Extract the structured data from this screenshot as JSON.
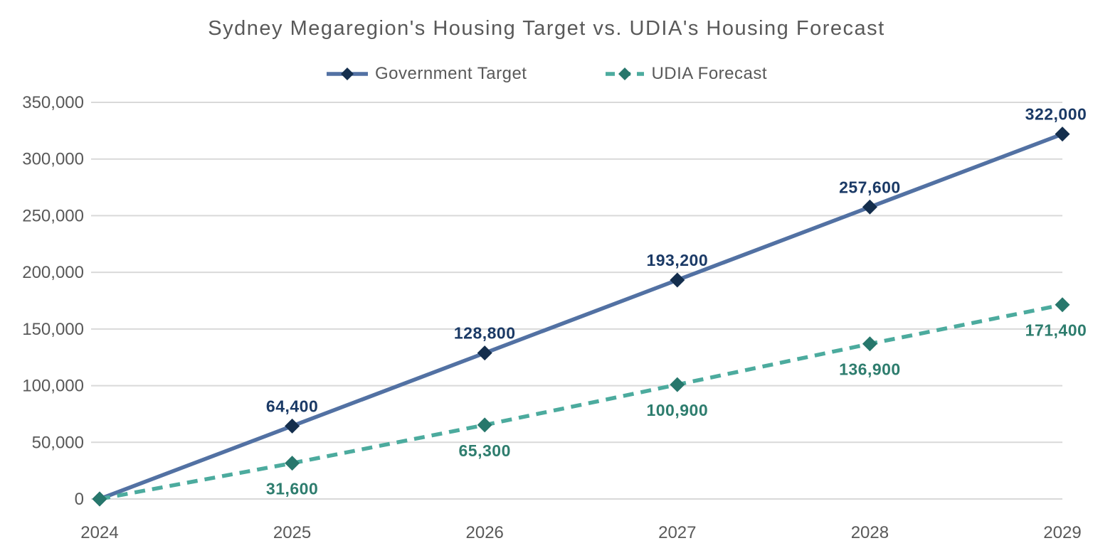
{
  "title": "Sydney Megaregion's Housing Target vs. UDIA's Housing Forecast",
  "legend": {
    "items": [
      {
        "label": "Government Target"
      },
      {
        "label": "UDIA Forecast"
      }
    ]
  },
  "colors": {
    "background": "#ffffff",
    "title_text": "#595959",
    "axis_text": "#595959",
    "gridline": "#d9d9d9",
    "government_line": "#5271a3",
    "government_marker": "#142e4d",
    "government_label": "#1b3a66",
    "udia_line": "#4cab9e",
    "udia_marker": "#27776c",
    "udia_label": "#2e7d6e"
  },
  "chart_data": {
    "type": "line",
    "title": "Sydney Megaregion's Housing Target vs. UDIA's Housing Forecast",
    "x": [
      2024,
      2025,
      2026,
      2027,
      2028,
      2029
    ],
    "xtick_labels": [
      "2024",
      "2025",
      "2026",
      "2027",
      "2028",
      "2029"
    ],
    "series": [
      {
        "name": "Government Target",
        "values": [
          0,
          64400,
          128800,
          193200,
          257600,
          322000
        ],
        "data_labels": [
          "",
          "64,400",
          "128,800",
          "193,200",
          "257,600",
          "322,000"
        ],
        "style": "solid",
        "color": "#5271a3",
        "marker": "diamond",
        "marker_color": "#142e4d",
        "label_color": "#1b3a66",
        "label_position": "above"
      },
      {
        "name": "UDIA Forecast",
        "values": [
          0,
          31600,
          65300,
          100900,
          136900,
          171400
        ],
        "data_labels": [
          "",
          "31,600",
          "65,300",
          "100,900",
          "136,900",
          "171,400"
        ],
        "style": "dashed",
        "color": "#4cab9e",
        "marker": "diamond",
        "marker_color": "#27776c",
        "label_color": "#2e7d6e",
        "label_position": "below"
      }
    ],
    "xlabel": "",
    "ylabel": "",
    "ylim": [
      0,
      350000
    ],
    "yticks": [
      0,
      50000,
      100000,
      150000,
      200000,
      250000,
      300000,
      350000
    ],
    "ytick_labels": [
      "0",
      "50,000",
      "100,000",
      "150,000",
      "200,000",
      "250,000",
      "300,000",
      "350,000"
    ],
    "grid": true,
    "legend_position": "top"
  }
}
